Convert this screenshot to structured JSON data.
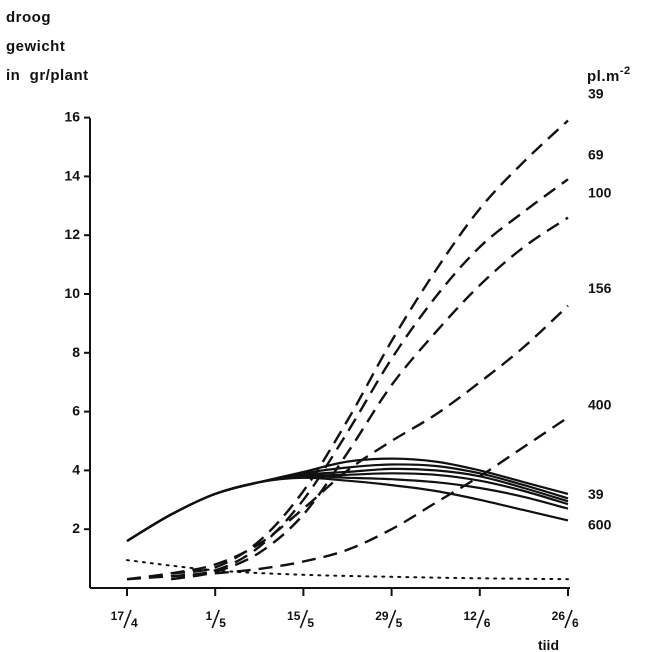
{
  "chart_data": {
    "type": "line",
    "ylabel_lines": [
      "droog",
      "gewicht",
      "in  gr/plant"
    ],
    "xlabel": "tiid",
    "legend_title": "pl.m",
    "legend_title_exponent": "-2",
    "ylim": [
      0,
      16
    ],
    "yticks": [
      2,
      4,
      6,
      8,
      10,
      12,
      14,
      16
    ],
    "x_ticks": [
      {
        "num": "17",
        "den": "4",
        "day": 0
      },
      {
        "num": "1",
        "den": "5",
        "day": 14
      },
      {
        "num": "15",
        "den": "5",
        "day": 28
      },
      {
        "num": "29",
        "den": "5",
        "day": 42
      },
      {
        "num": "12",
        "den": "6",
        "day": 56
      },
      {
        "num": "26",
        "den": "6",
        "day": 70
      }
    ],
    "xlim_days": [
      -9,
      72
    ],
    "dashed_series": [
      {
        "name": "39",
        "x": [
          7,
          14,
          21,
          28,
          35,
          42,
          49,
          56,
          63,
          70
        ],
        "y": [
          0.5,
          0.7,
          1.6,
          3.3,
          5.7,
          8.4,
          10.8,
          12.9,
          14.5,
          15.9
        ]
      },
      {
        "name": "69",
        "x": [
          7,
          14,
          21,
          28,
          35,
          42,
          49,
          56,
          63,
          70
        ],
        "y": [
          0.4,
          0.6,
          1.4,
          3.0,
          5.3,
          7.8,
          9.9,
          11.6,
          12.8,
          13.9
        ]
      },
      {
        "name": "100",
        "x": [
          7,
          14,
          21,
          28,
          35,
          42,
          49,
          56,
          63,
          70
        ],
        "y": [
          0.3,
          0.55,
          1.2,
          2.5,
          4.6,
          6.9,
          8.7,
          10.3,
          11.6,
          12.6
        ]
      },
      {
        "name": "156",
        "x": [
          0,
          7,
          14,
          21,
          28,
          35,
          42,
          49,
          56,
          63,
          70
        ],
        "y": [
          0.3,
          0.5,
          0.8,
          1.5,
          2.7,
          4.0,
          5.0,
          5.9,
          7.0,
          8.2,
          9.6
        ]
      },
      {
        "name": "400",
        "x": [
          0,
          7,
          14,
          21,
          28,
          35,
          42,
          49,
          56,
          63,
          70
        ],
        "y": [
          0.3,
          0.4,
          0.5,
          0.65,
          0.9,
          1.3,
          2.0,
          2.9,
          3.8,
          4.8,
          5.8
        ]
      }
    ],
    "solid_series": [
      {
        "name": "39",
        "x": [
          0,
          7,
          14,
          21,
          28,
          35,
          42,
          49,
          56,
          63,
          70
        ],
        "y": [
          1.6,
          2.5,
          3.2,
          3.6,
          3.95,
          4.3,
          4.4,
          4.3,
          4.0,
          3.6,
          3.2
        ]
      },
      {
        "name": "",
        "x": [
          0,
          7,
          14,
          21,
          28,
          35,
          42,
          49,
          56,
          63,
          70
        ],
        "y": [
          1.6,
          2.5,
          3.2,
          3.6,
          3.9,
          4.1,
          4.2,
          4.15,
          3.9,
          3.5,
          3.05
        ]
      },
      {
        "name": "",
        "x": [
          0,
          7,
          14,
          21,
          28,
          35,
          42,
          49,
          56,
          63,
          70
        ],
        "y": [
          1.6,
          2.5,
          3.2,
          3.6,
          3.85,
          3.95,
          4.05,
          4.0,
          3.8,
          3.4,
          2.95
        ]
      },
      {
        "name": "",
        "x": [
          0,
          7,
          14,
          21,
          28,
          35,
          42,
          49,
          56,
          63,
          70
        ],
        "y": [
          1.6,
          2.5,
          3.2,
          3.6,
          3.8,
          3.85,
          3.9,
          3.85,
          3.65,
          3.3,
          2.85
        ]
      },
      {
        "name": "",
        "x": [
          0,
          7,
          14,
          21,
          28,
          35,
          42,
          49,
          56,
          63,
          70
        ],
        "y": [
          1.6,
          2.5,
          3.2,
          3.6,
          3.8,
          3.75,
          3.7,
          3.6,
          3.4,
          3.1,
          2.7
        ]
      },
      {
        "name": "600",
        "x": [
          0,
          7,
          14,
          21,
          28,
          35,
          42,
          49,
          56,
          63,
          70
        ],
        "y": [
          1.6,
          2.5,
          3.2,
          3.6,
          3.75,
          3.65,
          3.5,
          3.3,
          3.0,
          2.65,
          2.3
        ]
      }
    ],
    "dotted_series": [
      {
        "name": "",
        "x": [
          0,
          14,
          28,
          42,
          56,
          70
        ],
        "y": [
          0.95,
          0.6,
          0.45,
          0.38,
          0.33,
          0.3
        ]
      }
    ],
    "grid": false,
    "legend": "right-end labels"
  }
}
